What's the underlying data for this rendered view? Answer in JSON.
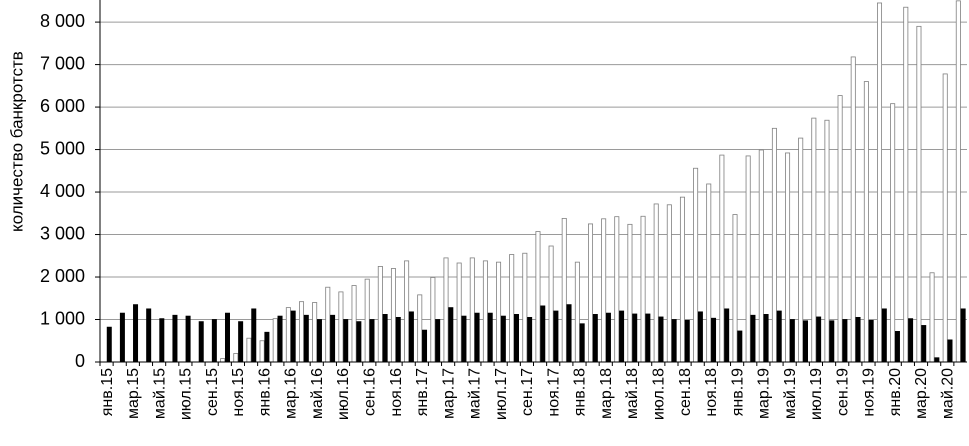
{
  "chart_data": {
    "type": "bar",
    "y_label": "количество банкротств",
    "categories": [
      "янв.15",
      null,
      "мар.15",
      null,
      "май.15",
      null,
      "июл.15",
      null,
      "сен.15",
      null,
      "ноя.15",
      null,
      "янв.16",
      null,
      "мар.16",
      null,
      "май.16",
      null,
      "июл.16",
      null,
      "сен.16",
      null,
      "ноя.16",
      null,
      "янв.17",
      null,
      "мар.17",
      null,
      "май.17",
      null,
      "июл.17",
      null,
      "сен.17",
      null,
      "ноя.17",
      null,
      "янв.18",
      null,
      "мар.18",
      null,
      "май.18",
      null,
      "июл.18",
      null,
      "сен.18",
      null,
      "ноя.18",
      null,
      "янв.19",
      null,
      "мар.19",
      null,
      "май.19",
      null,
      "июл.19",
      null,
      "сен.19",
      null,
      "ноя.19",
      null,
      "янв.20",
      null,
      "мар.20",
      null,
      "май.20",
      null
    ],
    "series": [
      {
        "color": "#ffffff",
        "values": [
          0,
          0,
          0,
          0,
          0,
          0,
          0,
          0,
          0,
          80,
          200,
          560,
          500,
          1020,
          1280,
          1420,
          1400,
          1760,
          1650,
          1800,
          1950,
          2250,
          2200,
          2380,
          1580,
          1990,
          2450,
          2330,
          2450,
          2380,
          2350,
          2530,
          2560,
          3070,
          2730,
          3380,
          2350,
          3250,
          3370,
          3420,
          3240,
          3430,
          3720,
          3700,
          3880,
          4560,
          4190,
          4870,
          3470,
          4850,
          4990,
          5500,
          4920,
          5270,
          5740,
          5690,
          6270,
          7180,
          6600,
          8450,
          6080,
          8350,
          7900,
          2100,
          6780,
          8500
        ]
      },
      {
        "color": "#000000",
        "values": [
          820,
          1150,
          1350,
          1250,
          1020,
          1100,
          1080,
          950,
          1000,
          1150,
          950,
          1250,
          700,
          1080,
          1200,
          1100,
          1000,
          1100,
          1000,
          950,
          1000,
          1120,
          1050,
          1180,
          750,
          1000,
          1280,
          1080,
          1150,
          1150,
          1080,
          1120,
          1050,
          1320,
          1200,
          1350,
          900,
          1120,
          1150,
          1200,
          1130,
          1130,
          1060,
          1000,
          980,
          1180,
          1030,
          1250,
          730,
          1100,
          1120,
          1200,
          1000,
          970,
          1060,
          970,
          1000,
          1050,
          980,
          1250,
          720,
          1020,
          860,
          100,
          520,
          1250
        ]
      }
    ],
    "ylim": [
      0,
      8520
    ],
    "yticks": [
      0,
      {
        "value": 1000,
        "label": "1 000"
      },
      {
        "value": 2000,
        "label": "2 000"
      },
      {
        "value": 3000,
        "label": "3 000"
      },
      {
        "value": 4000,
        "label": "4 000"
      },
      {
        "value": 5000,
        "label": "5 000"
      },
      {
        "value": 6000,
        "label": "6 000"
      },
      {
        "value": 7000,
        "label": "7 000"
      },
      {
        "value": 8000,
        "label": "8 000"
      }
    ],
    "grid": true
  }
}
